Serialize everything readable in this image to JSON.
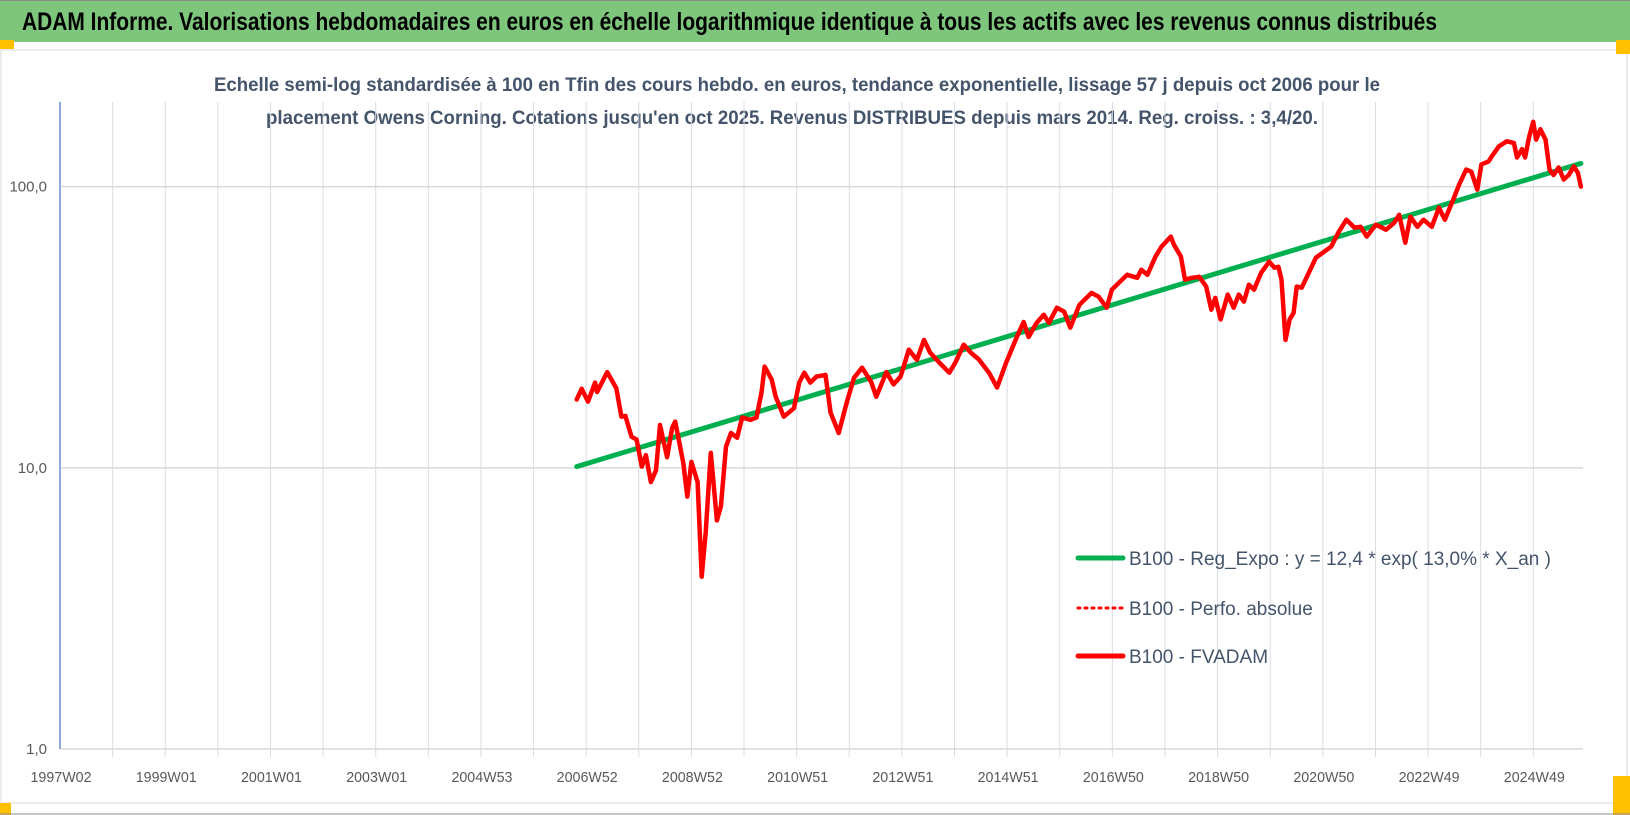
{
  "header": {
    "title": "ADAM Informe. Valorisations hebdomadaires en euros en échelle logarithmique identique à tous les actifs avec les revenus connus distribués",
    "background": "#7dc67b"
  },
  "chart_data": {
    "type": "line",
    "title_lines": [
      "Echelle semi-log standardisée à 100 en Tfin des cours hebdo. en euros, tendance exponentielle, lissage 57 j depuis oct 2006 pour le",
      "placement Owens Corning. Cotations jusqu'en oct 2025. Revenus DISTRIBUES depuis mars 2014. Reg. croiss. : 3,4/20."
    ],
    "xlabel": "",
    "ylabel": "",
    "y_scale": "log",
    "ylim": [
      1,
      200
    ],
    "x_range": [
      "1997W02",
      "2025W44"
    ],
    "grid": true,
    "y_ticks": [
      "1,0",
      "10,0",
      "100,0"
    ],
    "y_tick_values": [
      1,
      10,
      100
    ],
    "x_tick_labels": [
      "1997W02",
      "1999W01",
      "2001W01",
      "2003W01",
      "2004W53",
      "2006W52",
      "2008W52",
      "2010W51",
      "2012W51",
      "2014W51",
      "2016W50",
      "2018W50",
      "2020W50",
      "2022W49",
      "2024W49"
    ],
    "legend_position": "bottom-right",
    "series": [
      {
        "name": "B100 - Reg_Expo : y = 12,4 * exp( 13,0% *  X_an )",
        "color": "#00b050",
        "style": "solid-thick",
        "kind": "exponential-trend",
        "x": [
          "2006W43",
          "2025W44"
        ],
        "values": [
          10.1,
          121
        ]
      },
      {
        "name": "B100 - Perfo. absolue",
        "color": "#ff0000",
        "style": "dotted",
        "x": [],
        "values": []
      },
      {
        "name": "B100 - FVADAM",
        "color": "#ff0000",
        "style": "solid-thick",
        "x": [
          "2006W43",
          "2006W48",
          "2007W02",
          "2007W09",
          "2007W11",
          "2007W21",
          "2007W30",
          "2007W35",
          "2007W39",
          "2007W45",
          "2007W50",
          "2008W03",
          "2008W07",
          "2008W12",
          "2008W17",
          "2008W21",
          "2008W28",
          "2008W33",
          "2008W36",
          "2008W44",
          "2008W48",
          "2008W52",
          "2009W06",
          "2009W10",
          "2009W14",
          "2009W19",
          "2009W25",
          "2009W29",
          "2009W34",
          "2009W39",
          "2009W45",
          "2009W50",
          "2010W06",
          "2010W12",
          "2010W17",
          "2010W20",
          "2010W27",
          "2010W31",
          "2010W39",
          "2010W49",
          "2011W02",
          "2011W07",
          "2011W13",
          "2011W19",
          "2011W28",
          "2011W33",
          "2011W41",
          "2011W49",
          "2012W04",
          "2012W12",
          "2012W21",
          "2012W26",
          "2012W36",
          "2012W43",
          "2012W50",
          "2013W06",
          "2013W14",
          "2013W21",
          "2013W27",
          "2013W36",
          "2013W46",
          "2013W52",
          "2014W08",
          "2014W15",
          "2014W23",
          "2014W33",
          "2014W41",
          "2014W50",
          "2015W08",
          "2015W15",
          "2015W20",
          "2015W28",
          "2015W35",
          "2015W40",
          "2015W48",
          "2016W03",
          "2016W09",
          "2016W18",
          "2016W30",
          "2016W37",
          "2016W45",
          "2016W50",
          "2017W13",
          "2017W23",
          "2017W27",
          "2017W33",
          "2017W41",
          "2017W47",
          "2018W04",
          "2018W07",
          "2018W14",
          "2018W18",
          "2018W25",
          "2018W32",
          "2018W39",
          "2018W44",
          "2018W48",
          "2019W01",
          "2019W08",
          "2019W14",
          "2019W19",
          "2019W24",
          "2019W29",
          "2019W34",
          "2019W41",
          "2019W49",
          "2020W02",
          "2020W06",
          "2020W09",
          "2020W13",
          "2020W17",
          "2020W21",
          "2020W24",
          "2020W29",
          "2020W36",
          "2020W43",
          "2021W06",
          "2021W13",
          "2021W21",
          "2021W29",
          "2021W35",
          "2021W41",
          "2021W50",
          "2022W08",
          "2022W16",
          "2022W21",
          "2022W27",
          "2022W32",
          "2022W39",
          "2022W45",
          "2023W01",
          "2023W08",
          "2023W14",
          "2023W23",
          "2023W28",
          "2023W35",
          "2023W40",
          "2023W46",
          "2023W50",
          "2024W05",
          "2024W08",
          "2024W15",
          "2024W23",
          "2024W30",
          "2024W33",
          "2024W38",
          "2024W41",
          "2024W45",
          "2024W49",
          "2024W52",
          "2025W04",
          "2025W09",
          "2025W13",
          "2025W17",
          "2025W22",
          "2025W27",
          "2025W32",
          "2025W37",
          "2025W41",
          "2025W44"
        ],
        "values": [
          17.5,
          19.1,
          17.2,
          20.1,
          18.6,
          21.9,
          19.2,
          15.2,
          15.3,
          12.9,
          12.6,
          10.1,
          11.1,
          8.9,
          9.8,
          14.2,
          10.9,
          13.9,
          14.6,
          10.4,
          7.9,
          10.5,
          8.9,
          4.1,
          5.9,
          11.3,
          6.5,
          7.3,
          11.9,
          13.3,
          12.8,
          15.1,
          14.8,
          15.1,
          18.6,
          22.9,
          20.6,
          17.9,
          15.2,
          16.3,
          20.1,
          21.8,
          20.1,
          21.1,
          21.4,
          15.7,
          13.3,
          17.1,
          20.9,
          22.7,
          20.2,
          17.9,
          21.9,
          19.8,
          21.1,
          26.3,
          24.2,
          28.5,
          25.7,
          23.7,
          21.8,
          23.7,
          27.4,
          25.7,
          24.3,
          21.8,
          19.3,
          23.7,
          29.0,
          33.0,
          29.2,
          32.8,
          35.0,
          32.8,
          37.1,
          35.9,
          31.5,
          38.0,
          41.9,
          40.6,
          37.1,
          43.0,
          48.6,
          47.4,
          50.6,
          48.6,
          56.4,
          61.2,
          66.4,
          62.2,
          56.4,
          46.7,
          47.4,
          47.8,
          44.1,
          36.5,
          40.2,
          33.7,
          41.3,
          37.1,
          41.3,
          39.0,
          44.8,
          43.0,
          49.4,
          54.1,
          51.5,
          51.9,
          46.7,
          28.5,
          33.7,
          35.6,
          44.1,
          43.7,
          49.4,
          55.9,
          61.2,
          68.6,
          76.3,
          71.5,
          72.0,
          66.4,
          73.2,
          70.3,
          74.4,
          79.4,
          63.2,
          78.2,
          72.0,
          76.3,
          72.0,
          84.2,
          76.3,
          91.4,
          101.6,
          115,
          113,
          97.6,
          120,
          123,
          128,
          139,
          145,
          143,
          127,
          136,
          127,
          150,
          170,
          147,
          160,
          147,
          115,
          110,
          117,
          106,
          110,
          118,
          112,
          100
        ]
      }
    ]
  }
}
